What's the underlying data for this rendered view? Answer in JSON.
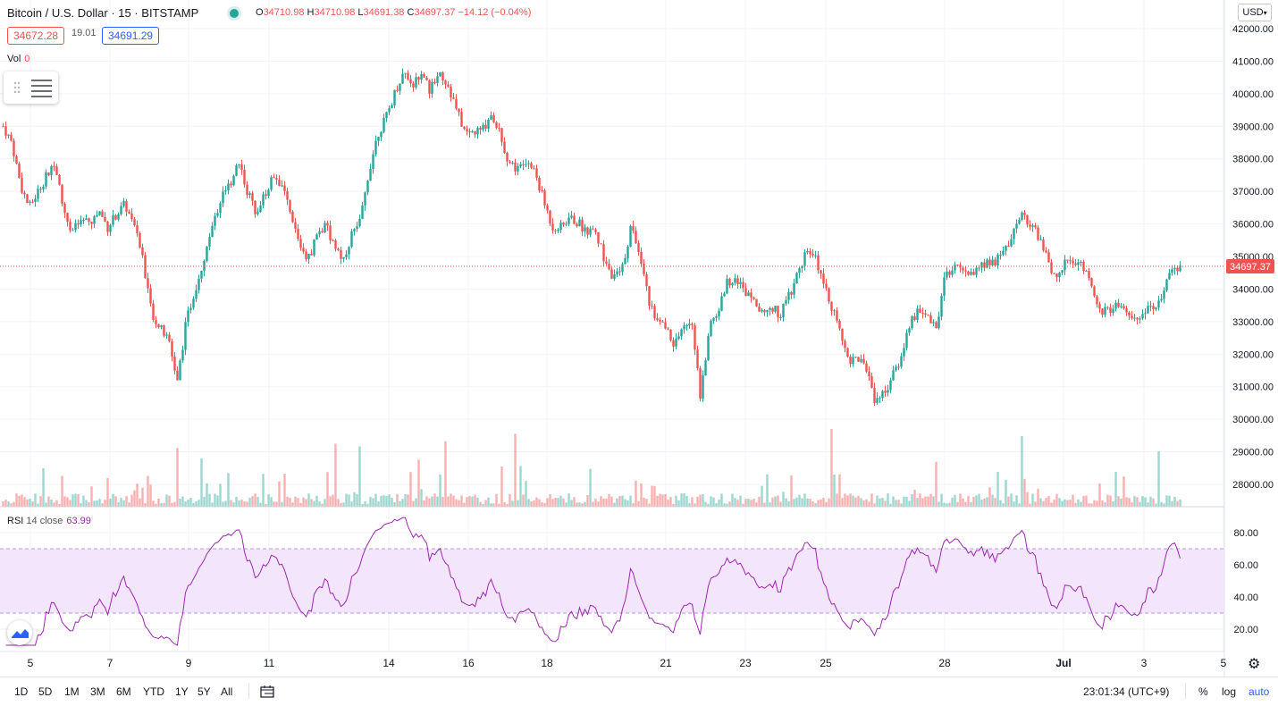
{
  "header": {
    "symbol": "Bitcoin / U.S. Dollar · 15 · BITSTAMP",
    "ohlc": [
      {
        "k": "O",
        "v": "34710.98"
      },
      {
        "k": "H",
        "v": "34710.98"
      },
      {
        "k": "L",
        "v": "34691.38"
      },
      {
        "k": "C",
        "v": "34697.37"
      }
    ],
    "change": "−14.12 (−0.04%)",
    "bid": "34672.28",
    "spread": "19.01",
    "ask": "34691.29",
    "currency": "USD"
  },
  "volume_label": {
    "name": "Vol",
    "value": "0"
  },
  "rsi_label": {
    "name": "RSI",
    "params": "14 close",
    "value": "63.99"
  },
  "bottom": {
    "timeframes": [
      "1D",
      "5D",
      "1M",
      "3M",
      "6M",
      "YTD",
      "1Y",
      "5Y",
      "All"
    ],
    "clock": "23:01:34 (UTC+9)",
    "percent": "%",
    "log": "log",
    "auto": "auto"
  },
  "icons": [
    "drag-handle-icon",
    "settings-lines-icon",
    "calendar-range-icon",
    "tradingview-logo-icon",
    "gear-icon",
    "chevron-down-icon"
  ],
  "colors": {
    "up": "#26a69a",
    "down": "#ef5350",
    "rsi": "#9c27b0",
    "rsi_band": "#f3e5fc",
    "ask": "#2962ff"
  },
  "chart_data": [
    {
      "type": "candlestick",
      "title": "Bitcoin / U.S. Dollar · 15 · BITSTAMP",
      "ylim": [
        27500,
        42300
      ],
      "x_ticks": [
        "5",
        "7",
        "9",
        "11",
        "14",
        "16",
        "18",
        "21",
        "23",
        "25",
        "28",
        "Jul",
        "3",
        "5"
      ],
      "y_ticks": [
        "42000.00",
        "41000.00",
        "40000.00",
        "39000.00",
        "38000.00",
        "37000.00",
        "36000.00",
        "35000.00",
        "34000.00",
        "33000.00",
        "32000.00",
        "31000.00",
        "30000.00",
        "29000.00",
        "28000.00"
      ],
      "last_price": "34697.37",
      "approx_path": [
        39000,
        38500,
        37200,
        36500,
        37000,
        37500,
        37800,
        36300,
        35800,
        36100,
        36000,
        36400,
        35900,
        36300,
        36600,
        35900,
        35000,
        33300,
        32800,
        32400,
        31200,
        33000,
        34000,
        34900,
        35900,
        36800,
        37200,
        38000,
        37000,
        36400,
        36900,
        37500,
        37200,
        36200,
        35400,
        34900,
        35700,
        35900,
        35400,
        34900,
        35700,
        36100,
        37700,
        38800,
        39300,
        40100,
        40700,
        40300,
        40500,
        40100,
        40700,
        40300,
        39500,
        38800,
        38800,
        38900,
        39400,
        38800,
        37900,
        37700,
        37900,
        37600,
        36700,
        35900,
        35900,
        36200,
        36000,
        35800,
        35700,
        34900,
        34300,
        34600,
        35900,
        35200,
        33700,
        33000,
        32800,
        32300,
        32800,
        33100,
        30600,
        32900,
        33300,
        34200,
        34400,
        33900,
        33900,
        33200,
        33500,
        33200,
        33700,
        34400,
        35100,
        35000,
        34400,
        33500,
        32600,
        31800,
        31900,
        31600,
        30600,
        30800,
        31300,
        31900,
        33000,
        33300,
        33200,
        32700,
        34500,
        34600,
        34700,
        34400,
        34700,
        34800,
        34900,
        35200,
        35900,
        36300,
        35900,
        35500,
        34700,
        34400,
        34900,
        34800,
        34700,
        33800,
        33300,
        33400,
        33500,
        33200,
        33100,
        33400,
        33300,
        33900,
        34600,
        34700
      ]
    },
    {
      "type": "bar",
      "title": "Vol",
      "note": "volume histogram, per-bar values not readable"
    },
    {
      "type": "line",
      "title": "RSI 14 close",
      "ylim": [
        10,
        90
      ],
      "y_ticks": [
        "80.00",
        "60.00",
        "40.00",
        "20.00"
      ],
      "bands": [
        30,
        70
      ],
      "last_value": 63.99
    }
  ]
}
